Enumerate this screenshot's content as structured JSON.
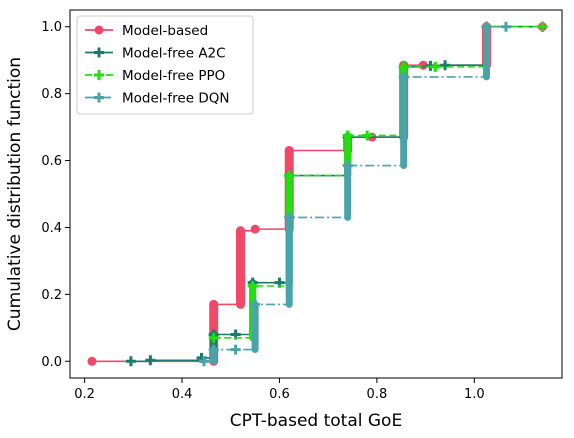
{
  "chart_data": {
    "type": "line",
    "subtype": "step-cdf",
    "title": "",
    "xlabel": "CPT-based total GoE",
    "ylabel": "Cumulative distribution function",
    "xlim": [
      0.17,
      1.18
    ],
    "ylim": [
      -0.05,
      1.05
    ],
    "xticks": [
      0.2,
      0.4,
      0.6,
      0.8,
      1.0
    ],
    "xtick_labels": [
      "0.2",
      "0.4",
      "0.6",
      "0.8",
      "1.0"
    ],
    "yticks": [
      0.0,
      0.2,
      0.4,
      0.6,
      0.8,
      1.0
    ],
    "ytick_labels": [
      "0.0",
      "0.2",
      "0.4",
      "0.6",
      "0.8",
      "1.0"
    ],
    "grid": false,
    "legend_position": "top-left",
    "series": [
      {
        "name": "Model-based",
        "color": "#f04868",
        "dash": "solid",
        "marker": "circle",
        "x": [
          0.215,
          0.465,
          0.52,
          0.55,
          0.62,
          0.74,
          0.79,
          0.855,
          0.895,
          1.025,
          1.14
        ],
        "y": [
          0.0,
          0.17,
          0.39,
          0.395,
          0.63,
          0.67,
          0.67,
          0.885,
          0.885,
          1.0,
          1.0
        ]
      },
      {
        "name": "Model-free A2C",
        "color": "#1a7a6e",
        "dash": "solid",
        "marker": "plus",
        "x": [
          0.295,
          0.335,
          0.44,
          0.465,
          0.51,
          0.545,
          0.6,
          0.62,
          0.74,
          0.855,
          0.91,
          0.94,
          1.025,
          1.14
        ],
        "y": [
          0.0,
          0.003,
          0.01,
          0.08,
          0.08,
          0.235,
          0.235,
          0.555,
          0.67,
          0.88,
          0.883,
          0.885,
          1.0,
          1.0
        ]
      },
      {
        "name": "Model-free PPO",
        "color": "#22e010",
        "dash": "dashed",
        "marker": "plus",
        "x": [
          0.465,
          0.545,
          0.62,
          0.74,
          0.78,
          0.855,
          0.92,
          1.025,
          1.14
        ],
        "y": [
          0.07,
          0.225,
          0.555,
          0.675,
          0.675,
          0.88,
          0.88,
          1.0,
          1.0
        ]
      },
      {
        "name": "Model-free DQN",
        "color": "#4aa3a9",
        "dash": "dashdot",
        "marker": "plus",
        "x": [
          0.445,
          0.465,
          0.51,
          0.55,
          0.62,
          0.74,
          0.855,
          1.025,
          1.065
        ],
        "y": [
          0.0,
          0.035,
          0.035,
          0.17,
          0.43,
          0.585,
          0.85,
          1.0,
          1.0
        ]
      }
    ]
  }
}
